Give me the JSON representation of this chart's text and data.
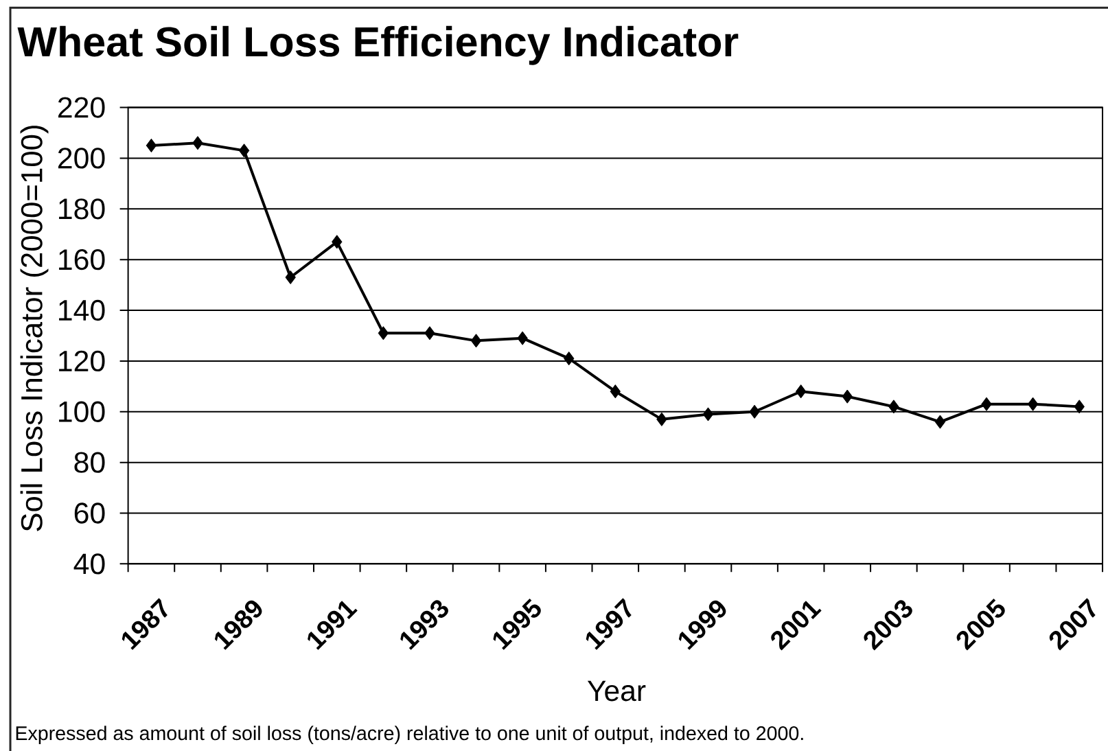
{
  "chart_data": {
    "type": "line",
    "title": "Wheat Soil Loss Efficiency Indicator",
    "xlabel": "Year",
    "ylabel": "Soil Loss Indicator (2000=100)",
    "annotations": [
      "Expressed as amount of soil loss (tons/acre) relative to one unit of output, indexed to 2000."
    ],
    "categories": [
      "1987",
      null,
      "1989",
      null,
      "1991",
      null,
      "1993",
      null,
      "1995",
      null,
      "1997",
      null,
      "1999",
      null,
      "2001",
      null,
      "2003",
      null,
      "2005",
      null,
      "2007"
    ],
    "values": [
      205,
      206,
      203,
      153,
      167,
      131,
      131,
      128,
      129,
      121,
      108,
      97,
      99,
      100,
      108,
      106,
      102,
      96,
      103,
      103,
      102
    ],
    "color": "#000000",
    "ylim": [
      40,
      220
    ],
    "yticks": [
      40,
      60,
      80,
      100,
      120,
      140,
      160,
      180,
      200,
      220
    ],
    "grid": "y",
    "marker": "diamond",
    "line_style": "solid"
  }
}
